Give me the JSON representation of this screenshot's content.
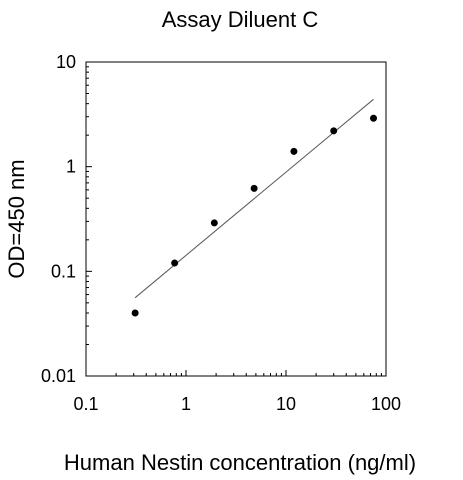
{
  "chart_data": {
    "type": "scatter",
    "title": "Assay Diluent C",
    "xlabel": "Human Nestin concentration (ng/ml)",
    "ylabel": "OD=450 nm",
    "x_scale": "log",
    "y_scale": "log",
    "xlim": [
      0.1,
      100
    ],
    "ylim": [
      0.01,
      10
    ],
    "x_ticks": [
      0.1,
      1,
      10,
      100
    ],
    "x_tick_labels": [
      "0.1",
      "1",
      "10",
      "100"
    ],
    "y_ticks": [
      0.01,
      0.1,
      1,
      10
    ],
    "y_tick_labels": [
      "0.01",
      "0.1",
      "1",
      "10"
    ],
    "grid": false,
    "legend": "none",
    "points": [
      {
        "x": 0.31,
        "y": 0.04
      },
      {
        "x": 0.77,
        "y": 0.12
      },
      {
        "x": 1.92,
        "y": 0.29
      },
      {
        "x": 4.8,
        "y": 0.62
      },
      {
        "x": 12.0,
        "y": 1.4
      },
      {
        "x": 30.0,
        "y": 2.2
      },
      {
        "x": 75.0,
        "y": 2.9
      }
    ],
    "trendline": [
      {
        "x": 0.31,
        "y": 0.056
      },
      {
        "x": 75.0,
        "y": 4.4
      }
    ],
    "colors": {
      "points": "#000000",
      "trendline": "#555555",
      "axes": "#000000"
    }
  }
}
